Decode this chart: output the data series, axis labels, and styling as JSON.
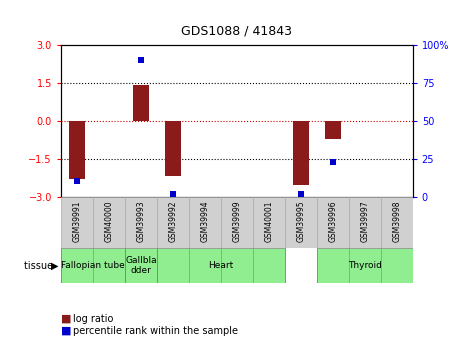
{
  "title": "GDS1088 / 41843",
  "samples": [
    "GSM39991",
    "GSM40000",
    "GSM39993",
    "GSM39992",
    "GSM39994",
    "GSM39999",
    "GSM40001",
    "GSM39995",
    "GSM39996",
    "GSM39997",
    "GSM39998"
  ],
  "log_ratio": [
    -2.3,
    0.0,
    1.42,
    -2.2,
    0.0,
    0.0,
    0.0,
    -2.55,
    -0.72,
    0.0,
    0.0
  ],
  "percentile_rank": [
    10,
    null,
    90,
    2,
    null,
    null,
    null,
    2,
    23,
    null,
    null
  ],
  "bar_color": "#8B1A1A",
  "dot_color": "#0000CC",
  "ylim": [
    -3,
    3
  ],
  "y2lim": [
    0,
    100
  ],
  "yticks": [
    -3,
    -1.5,
    0,
    1.5,
    3
  ],
  "y2ticks": [
    0,
    25,
    50,
    75,
    100
  ],
  "y2tick_labels": [
    "0",
    "25",
    "50",
    "75",
    "100%"
  ],
  "hline_color": "#cc0000",
  "dotted_lines": [
    -1.5,
    1.5
  ],
  "tissue_groups": [
    {
      "label": "Fallopian tube",
      "start": 0,
      "end": 2
    },
    {
      "label": "Gallbla\ndder",
      "start": 2,
      "end": 3
    },
    {
      "label": "Heart",
      "start": 3,
      "end": 7
    },
    {
      "label": "Thyroid",
      "start": 8,
      "end": 11
    }
  ],
  "sample_bg_color": "#d0d0d0",
  "tissue_color": "#90EE90",
  "legend_log_ratio": "log ratio",
  "legend_percentile": "percentile rank within the sample",
  "background_color": "#ffffff",
  "bar_width": 0.5,
  "title_fontsize": 9,
  "tick_fontsize": 7,
  "sample_fontsize": 5.5,
  "legend_fontsize": 7,
  "tissue_fontsize": 6.5
}
